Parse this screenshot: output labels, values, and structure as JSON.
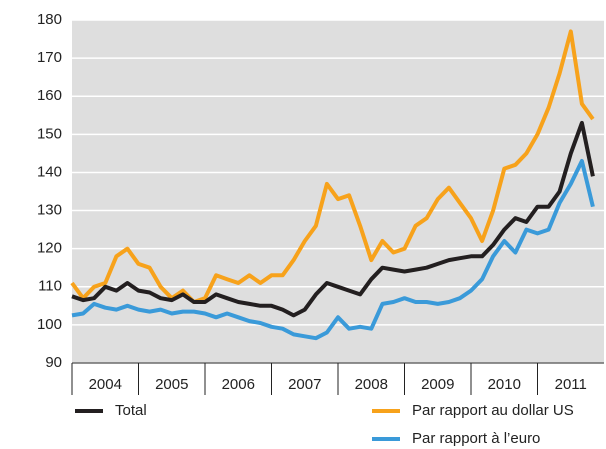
{
  "chart_data": {
    "type": "line",
    "x": [
      2004,
      2004.167,
      2004.333,
      2004.5,
      2004.667,
      2004.833,
      2005,
      2005.167,
      2005.333,
      2005.5,
      2005.667,
      2005.833,
      2006,
      2006.167,
      2006.333,
      2006.5,
      2006.667,
      2006.833,
      2007,
      2007.167,
      2007.333,
      2007.5,
      2007.667,
      2007.833,
      2008,
      2008.167,
      2008.333,
      2008.5,
      2008.667,
      2008.833,
      2009,
      2009.167,
      2009.333,
      2009.5,
      2009.667,
      2009.833,
      2010,
      2010.167,
      2010.333,
      2010.5,
      2010.667,
      2010.833,
      2011,
      2011.167,
      2011.333,
      2011.5,
      2011.667,
      2011.833
    ],
    "series": [
      {
        "name": "Total",
        "color": "#231f20",
        "values": [
          107.5,
          106.5,
          107,
          110,
          109,
          111,
          109,
          108.5,
          107,
          106.5,
          108,
          106,
          106,
          108,
          107,
          106,
          105.5,
          105,
          105,
          104,
          102.5,
          104,
          108,
          111,
          110,
          109,
          108,
          112,
          115,
          114.5,
          114,
          114.5,
          115,
          116,
          117,
          117.5,
          118,
          118,
          121,
          125,
          128,
          127,
          131,
          131,
          135,
          145,
          153,
          139
        ]
      },
      {
        "name": "Par rapport au dollar US",
        "color": "#f7a21b",
        "values": [
          111,
          107,
          110,
          111,
          118,
          120,
          116,
          115,
          110,
          107,
          109,
          106,
          107,
          113,
          112,
          111,
          113,
          111,
          113,
          113,
          117,
          122,
          126,
          137,
          133,
          134,
          126,
          117,
          122,
          119,
          120,
          126,
          128,
          133,
          136,
          132,
          128,
          122,
          130,
          141,
          142,
          145,
          150,
          157,
          166,
          177,
          158,
          154
        ]
      },
      {
        "name": "Par rapport à l’euro",
        "color": "#3a9ad9",
        "values": [
          102.5,
          103,
          105.5,
          104.5,
          104,
          105,
          104,
          103.5,
          104,
          103,
          103.5,
          103.5,
          103,
          102,
          103,
          102,
          101,
          100.5,
          99.5,
          99,
          97.5,
          97,
          96.5,
          98,
          102,
          99,
          99.5,
          99,
          105.5,
          106,
          107,
          106,
          106,
          105.5,
          106,
          107,
          109,
          112,
          118,
          122,
          119,
          125,
          124,
          125,
          132,
          137,
          143,
          131
        ]
      }
    ],
    "xlim": [
      2004,
      2012
    ],
    "xticks": [
      {
        "value": 2004.5,
        "label": "2004"
      },
      {
        "value": 2005.5,
        "label": "2005"
      },
      {
        "value": 2006.5,
        "label": "2006"
      },
      {
        "value": 2007.5,
        "label": "2007"
      },
      {
        "value": 2008.5,
        "label": "2008"
      },
      {
        "value": 2009.5,
        "label": "2009"
      },
      {
        "value": 2010.5,
        "label": "2010"
      },
      {
        "value": 2011.5,
        "label": "2011"
      }
    ],
    "ylim": [
      90,
      180
    ],
    "yticks": [
      90,
      100,
      110,
      120,
      130,
      140,
      150,
      160,
      170,
      180
    ],
    "grid": true
  }
}
